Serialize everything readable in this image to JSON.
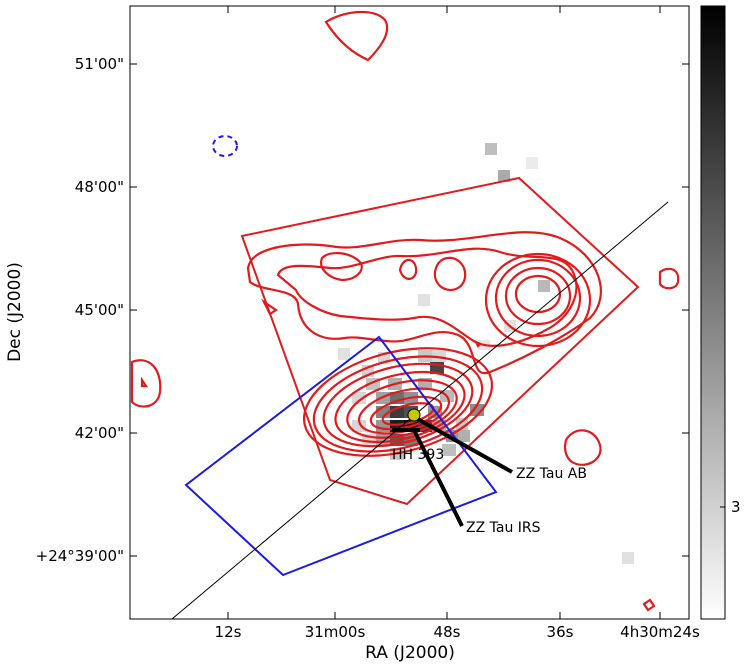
{
  "chart_data": {
    "type": "heatmap",
    "xlabel": "RA (J2000)",
    "ylabel": "Dec (J2000)",
    "x_ticks": [
      "12s",
      "31m00s",
      "48s",
      "36s",
      "4h30m24s"
    ],
    "y_ticks": [
      "51'00\"",
      "48'00\"",
      "45'00\"",
      "42'00\"",
      "+24°39'00\""
    ],
    "colorbar": {
      "label": "3"
    },
    "grid": false,
    "contour_color": "#e31a1c",
    "neg_contour_color": "#1a1ae3",
    "footprint_color": "#1a1ae3",
    "annotations": [
      {
        "text": "ZZ Tau AB"
      },
      {
        "text": "ZZ Tau IRS"
      },
      {
        "text": "HH 393"
      }
    ]
  }
}
